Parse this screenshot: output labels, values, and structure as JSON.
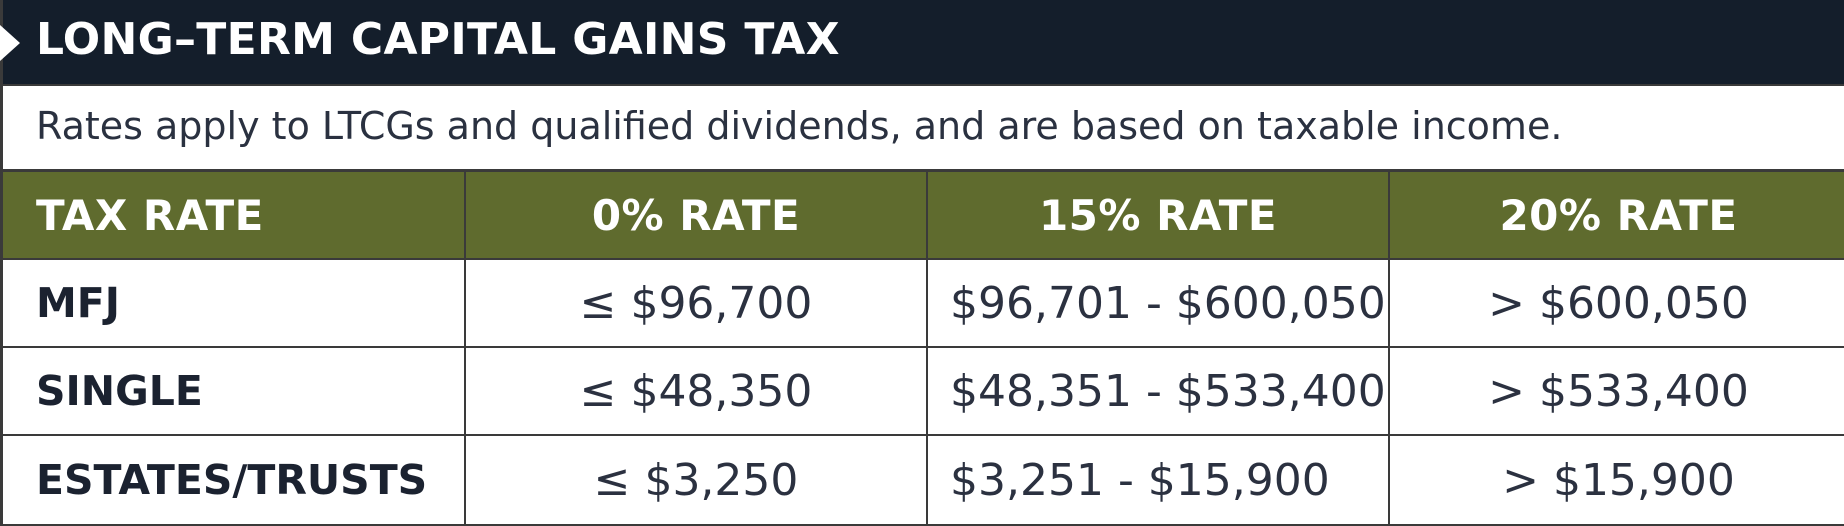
{
  "title": "LONG–TERM CAPITAL GAINS TAX",
  "subtitle": "Rates apply to LTCGs and qualified dividends, and are based on taxable income.",
  "colors": {
    "title_bg": "#141e2b",
    "header_bg": "#5f6b2e",
    "text": "#1b2230",
    "border": "#3a3a3a"
  },
  "table": {
    "headers": [
      "TAX RATE",
      "0% RATE",
      "15% RATE",
      "20% RATE"
    ],
    "rows": [
      {
        "label": "MFJ",
        "rate0": "≤ $96,700",
        "rate15": "$96,701 - $600,050",
        "rate20": "> $600,050"
      },
      {
        "label": "SINGLE",
        "rate0": "≤ $48,350",
        "rate15": "$48,351 - $533,400",
        "rate20": "> $533,400"
      },
      {
        "label": "ESTATES/TRUSTS",
        "rate0": "≤ $3,250",
        "rate15": "$3,251 - $15,900",
        "rate20": "> $15,900"
      }
    ]
  }
}
